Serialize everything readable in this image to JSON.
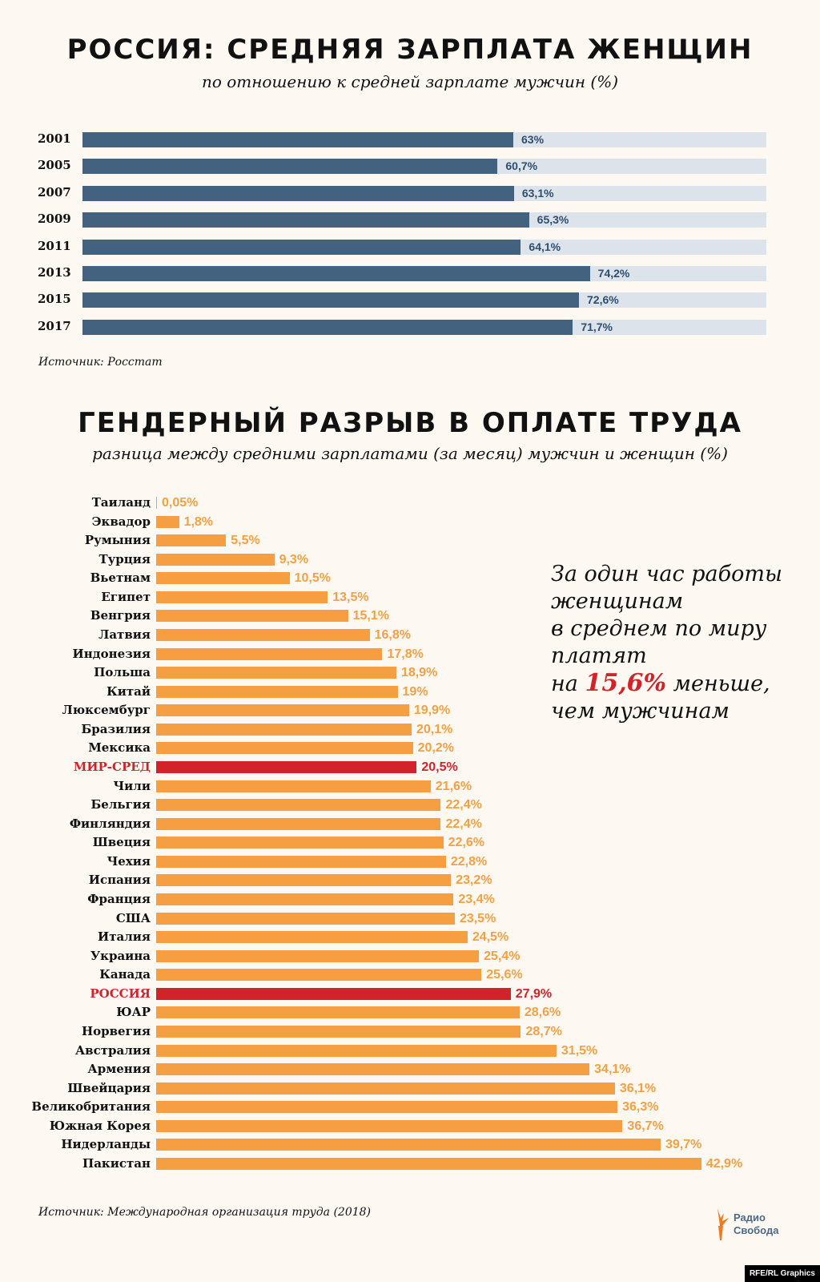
{
  "chart_data": [
    {
      "type": "bar",
      "orientation": "horizontal",
      "title": "РОССИЯ: СРЕДНЯЯ ЗАРПЛАТА ЖЕНЩИН",
      "subtitle": "по отношению к средней зарплате мужчин (%)",
      "categories": [
        "2001",
        "2005",
        "2007",
        "2009",
        "2011",
        "2013",
        "2015",
        "2017"
      ],
      "values": [
        63,
        60.7,
        63.1,
        65.3,
        64.1,
        74.2,
        72.6,
        71.7
      ],
      "labels": [
        "63%",
        "60,7%",
        "63,1%",
        "65,3%",
        "64,1%",
        "74,2%",
        "72,6%",
        "71,7%"
      ],
      "xlim": [
        0,
        100
      ],
      "source": "Источник: Росстат",
      "colors": {
        "bar": "#43627f",
        "track": "#dce3ea",
        "label": "#2f4d6e"
      }
    },
    {
      "type": "bar",
      "orientation": "horizontal",
      "title": "ГЕНДЕРНЫЙ РАЗРЫВ В ОПЛАТЕ ТРУДА",
      "subtitle": "разница между средними зарплатами (за месяц) мужчин и женщин (%)",
      "categories": [
        "Таиланд",
        "Эквадор",
        "Румыния",
        "Турция",
        "Вьетнам",
        "Египет",
        "Венгрия",
        "Латвия",
        "Индонезия",
        "Польша",
        "Китай",
        "Люксембург",
        "Бразилия",
        "Мексика",
        "МИР-СРЕД",
        "Чили",
        "Бельгия",
        "Финляндия",
        "Швеция",
        "Чехия",
        "Испания",
        "Франция",
        "США",
        "Италия",
        "Украина",
        "Канада",
        "РОССИЯ",
        "ЮАР",
        "Норвегия",
        "Австралия",
        "Армения",
        "Швейцария",
        "Великобритания",
        "Южная Корея",
        "Нидерланды",
        "Пакистан"
      ],
      "values": [
        0.05,
        1.8,
        5.5,
        9.3,
        10.5,
        13.5,
        15.1,
        16.8,
        17.8,
        18.9,
        19,
        19.9,
        20.1,
        20.2,
        20.5,
        21.6,
        22.4,
        22.4,
        22.6,
        22.8,
        23.2,
        23.4,
        23.5,
        24.5,
        25.4,
        25.6,
        27.9,
        28.6,
        28.7,
        31.5,
        34.1,
        36.1,
        36.3,
        36.7,
        39.7,
        42.9
      ],
      "labels": [
        "0,05%",
        "1,8%",
        "5,5%",
        "9,3%",
        "10,5%",
        "13,5%",
        "15,1%",
        "16,8%",
        "17,8%",
        "18,9%",
        "19%",
        "19,9%",
        "20,1%",
        "20,2%",
        "20,5%",
        "21,6%",
        "22,4%",
        "22,4%",
        "22,6%",
        "22,8%",
        "23,2%",
        "23,4%",
        "23,5%",
        "24,5%",
        "25,4%",
        "25,6%",
        "27,9%",
        "28,6%",
        "28,7%",
        "31,5%",
        "34,1%",
        "36,1%",
        "36,3%",
        "36,7%",
        "39,7%",
        "42,9%"
      ],
      "highlighted": [
        "МИР-СРЕД",
        "РОССИЯ"
      ],
      "source": "Источник: Международная организация труда (2018)",
      "colors": {
        "bar": "#f59f42",
        "highlight": "#d2232a",
        "label": "#f5a043"
      }
    }
  ],
  "callout": {
    "line1": "За один час работы",
    "line2": "женщинам",
    "line3": "в среднем по миру",
    "line4": "платят",
    "prefix": "на",
    "highlight": "15,6%",
    "suffix": "меньше,",
    "line6": "чем мужчинам"
  },
  "logo": {
    "line1": "Радио",
    "line2": "Свобода"
  },
  "credit": "RFE/RL Graphics"
}
